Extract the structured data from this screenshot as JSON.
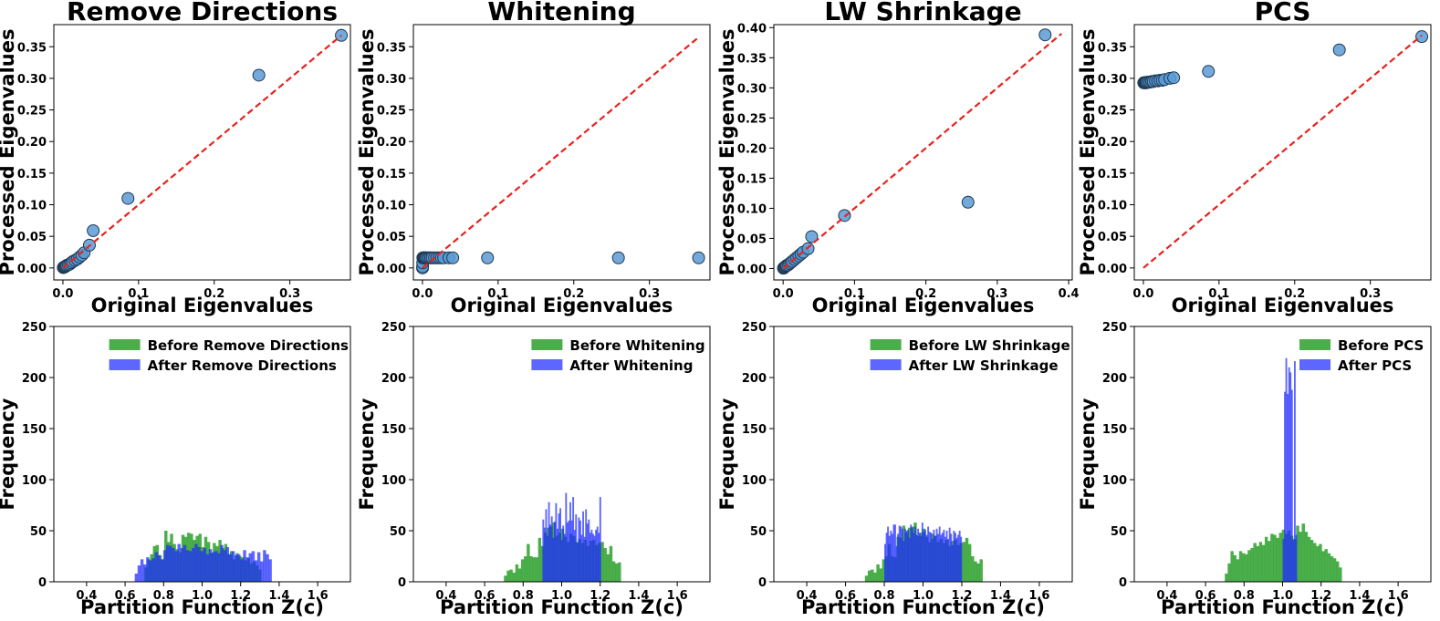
{
  "colors": {
    "scatter_fill": "#5b9bd5",
    "scatter_edge": "#1f3a55",
    "diagonal": "#e8221c",
    "before": "#2ca02c",
    "after": "#1f2bff"
  },
  "chart_data": [
    {
      "type": "scatter",
      "title": "Remove Directions",
      "xlabel": "Original Eigenvalues",
      "ylabel": "Processed Eigenvalues",
      "xlim": [
        -0.012,
        0.38
      ],
      "ylim": [
        -0.019,
        0.385
      ],
      "xticks": [
        0.0,
        0.1,
        0.2,
        0.3
      ],
      "xticklabels": [
        "0.0",
        "0.1",
        "0.2",
        "0.3"
      ],
      "yticks": [
        0.0,
        0.05,
        0.1,
        0.15,
        0.2,
        0.25,
        0.3,
        0.35
      ],
      "yticklabels": [
        "0.00",
        "0.05",
        "0.10",
        "0.15",
        "0.20",
        "0.25",
        "0.30",
        "0.35"
      ],
      "diagonal": [
        [
          0,
          0
        ],
        [
          0.368,
          0.368
        ]
      ],
      "x": [
        0.368,
        0.259,
        0.086,
        0.04,
        0.035,
        0.028,
        0.025,
        0.022,
        0.019,
        0.016,
        0.013,
        0.011,
        0.009,
        0.007,
        0.005,
        0.004,
        0.003,
        0.002,
        0.001,
        0.0005
      ],
      "y": [
        0.368,
        0.305,
        0.11,
        0.059,
        0.036,
        0.024,
        0.02,
        0.017,
        0.014,
        0.012,
        0.01,
        0.008,
        0.006,
        0.005,
        0.004,
        0.003,
        0.002,
        0.0015,
        0.001,
        0.0005
      ]
    },
    {
      "type": "scatter",
      "title": "Whitening",
      "xlabel": "Original Eigenvalues",
      "ylabel": "Processed Eigenvalues",
      "xlim": [
        -0.012,
        0.38
      ],
      "ylim": [
        -0.019,
        0.385
      ],
      "xticks": [
        0.0,
        0.1,
        0.2,
        0.3
      ],
      "xticklabels": [
        "0.0",
        "0.1",
        "0.2",
        "0.3"
      ],
      "yticks": [
        0.0,
        0.05,
        0.1,
        0.15,
        0.2,
        0.25,
        0.3,
        0.35
      ],
      "yticklabels": [
        "0.00",
        "0.05",
        "0.10",
        "0.15",
        "0.20",
        "0.25",
        "0.30",
        "0.35"
      ],
      "diagonal": [
        [
          0,
          0
        ],
        [
          0.365,
          0.365
        ]
      ],
      "x": [
        0.365,
        0.259,
        0.086,
        0.04,
        0.035,
        0.028,
        0.025,
        0.022,
        0.019,
        0.016,
        0.013,
        0.011,
        0.009,
        0.007,
        0.005,
        0.004,
        0.003,
        0.002,
        0.001,
        0.0005,
        0.0003,
        0.0002,
        0.0001
      ],
      "y": [
        0.016,
        0.016,
        0.016,
        0.016,
        0.016,
        0.016,
        0.016,
        0.016,
        0.016,
        0.016,
        0.016,
        0.016,
        0.016,
        0.016,
        0.016,
        0.016,
        0.016,
        0.016,
        0.016,
        0.016,
        0.008,
        0.002,
        0.0
      ]
    },
    {
      "type": "scatter",
      "title": "LW Shrinkage",
      "xlabel": "Original Eigenvalues",
      "ylabel": "Processed Eigenvalues",
      "xlim": [
        -0.013,
        0.405
      ],
      "ylim": [
        -0.019,
        0.405
      ],
      "xticks": [
        0.0,
        0.1,
        0.2,
        0.3,
        0.4
      ],
      "xticklabels": [
        "0.0",
        "0.1",
        "0.2",
        "0.3",
        "0.4"
      ],
      "yticks": [
        0.0,
        0.05,
        0.1,
        0.15,
        0.2,
        0.25,
        0.3,
        0.35,
        0.4
      ],
      "yticklabels": [
        "0.00",
        "0.05",
        "0.10",
        "0.15",
        "0.20",
        "0.25",
        "0.30",
        "0.35",
        "0.40"
      ],
      "diagonal": [
        [
          0,
          0
        ],
        [
          0.39,
          0.39
        ]
      ],
      "x": [
        0.367,
        0.259,
        0.086,
        0.04,
        0.035,
        0.028,
        0.025,
        0.022,
        0.019,
        0.016,
        0.013,
        0.011,
        0.009,
        0.007,
        0.005,
        0.004,
        0.003,
        0.002,
        0.001,
        0.0005
      ],
      "y": [
        0.388,
        0.11,
        0.088,
        0.053,
        0.033,
        0.027,
        0.024,
        0.021,
        0.018,
        0.015,
        0.012,
        0.01,
        0.008,
        0.006,
        0.005,
        0.004,
        0.003,
        0.002,
        0.001,
        0.0005
      ]
    },
    {
      "type": "scatter",
      "title": "PCS",
      "xlabel": "Original Eigenvalues",
      "ylabel": "Processed Eigenvalues",
      "xlim": [
        -0.012,
        0.38
      ],
      "ylim": [
        -0.019,
        0.385
      ],
      "xticks": [
        0.0,
        0.1,
        0.2,
        0.3
      ],
      "xticklabels": [
        "0.0",
        "0.1",
        "0.2",
        "0.3"
      ],
      "yticks": [
        0.0,
        0.05,
        0.1,
        0.15,
        0.2,
        0.25,
        0.3,
        0.35
      ],
      "yticklabels": [
        "0.00",
        "0.05",
        "0.10",
        "0.15",
        "0.20",
        "0.25",
        "0.30",
        "0.35"
      ],
      "diagonal": [
        [
          0,
          0
        ],
        [
          0.368,
          0.368
        ]
      ],
      "x": [
        0.368,
        0.259,
        0.086,
        0.04,
        0.035,
        0.028,
        0.025,
        0.022,
        0.019,
        0.016,
        0.013,
        0.011,
        0.009,
        0.007,
        0.005,
        0.004,
        0.003,
        0.002,
        0.001,
        0.0005
      ],
      "y": [
        0.366,
        0.345,
        0.311,
        0.301,
        0.3,
        0.298,
        0.297,
        0.297,
        0.296,
        0.296,
        0.295,
        0.295,
        0.294,
        0.294,
        0.294,
        0.293,
        0.293,
        0.293,
        0.293,
        0.293
      ]
    },
    {
      "type": "histogram",
      "xlabel": "Partition Function Z(c)",
      "ylabel": "Frequency",
      "xlim": [
        0.23,
        1.77
      ],
      "ylim": [
        0,
        250
      ],
      "xticks": [
        0.4,
        0.6,
        0.8,
        1.0,
        1.2,
        1.4,
        1.6
      ],
      "xticklabels": [
        "0.4",
        "0.6",
        "0.8",
        "1.0",
        "1.2",
        "1.4",
        "1.6"
      ],
      "yticks": [
        0,
        50,
        100,
        150,
        200,
        250
      ],
      "yticklabels": [
        "0",
        "50",
        "100",
        "150",
        "200",
        "250"
      ],
      "legend": [
        "Before Remove Directions",
        "After Remove Directions"
      ],
      "before": {
        "start": 0.7,
        "width": 0.0148,
        "counts": [
          14,
          22,
          27,
          35,
          36,
          26,
          22,
          50,
          39,
          47,
          37,
          32,
          29,
          46,
          44,
          48,
          47,
          41,
          45,
          47,
          34,
          44,
          39,
          28,
          38,
          35,
          41,
          33,
          37,
          27,
          30,
          22,
          28,
          25,
          24,
          21,
          23,
          18,
          20,
          16,
          12
        ]
      },
      "after": {
        "start": 0.65,
        "width": 0.0148,
        "counts": [
          8,
          16,
          22,
          17,
          24,
          21,
          23,
          29,
          26,
          22,
          31,
          36,
          35,
          33,
          30,
          37,
          33,
          36,
          31,
          30,
          33,
          37,
          34,
          30,
          33,
          27,
          32,
          29,
          30,
          28,
          36,
          31,
          34,
          27,
          30,
          26,
          27,
          22,
          31,
          24,
          28,
          30,
          21,
          29,
          20,
          31,
          27,
          22
        ]
      }
    },
    {
      "type": "histogram",
      "xlabel": "Partition Function Z(c)",
      "ylabel": "Frequency",
      "xlim": [
        0.23,
        1.77
      ],
      "ylim": [
        0,
        250
      ],
      "xticks": [
        0.4,
        0.6,
        0.8,
        1.0,
        1.2,
        1.4,
        1.6
      ],
      "xticklabels": [
        "0.4",
        "0.6",
        "0.8",
        "1.0",
        "1.2",
        "1.4",
        "1.6"
      ],
      "yticks": [
        0,
        50,
        100,
        150,
        200,
        250
      ],
      "yticklabels": [
        "0",
        "50",
        "100",
        "150",
        "200",
        "250"
      ],
      "legend": [
        "Before Whitening",
        "After Whitening"
      ],
      "before": {
        "start": 0.7,
        "width": 0.0148,
        "counts": [
          6,
          11,
          12,
          9,
          17,
          13,
          22,
          25,
          37,
          25,
          24,
          24,
          43,
          35,
          48,
          53,
          54,
          58,
          45,
          48,
          52,
          44,
          39,
          47,
          45,
          39,
          42,
          38,
          41,
          35,
          40,
          41,
          36,
          38,
          39,
          33,
          27,
          35,
          20,
          18,
          19
        ]
      },
      "after": {
        "start": 0.9,
        "width": 0.0074,
        "counts": [
          61,
          53,
          71,
          45,
          78,
          56,
          64,
          43,
          59,
          77,
          52,
          67,
          72,
          41,
          55,
          47,
          87,
          58,
          60,
          78,
          60,
          83,
          51,
          66,
          38,
          63,
          60,
          46,
          69,
          44,
          71,
          57,
          61,
          48,
          51,
          47,
          45,
          51,
          54,
          48,
          83
        ]
      }
    },
    {
      "type": "histogram",
      "xlabel": "Partition Function Z(c)",
      "ylabel": "Frequency",
      "xlim": [
        0.23,
        1.77
      ],
      "ylim": [
        0,
        250
      ],
      "xticks": [
        0.4,
        0.6,
        0.8,
        1.0,
        1.2,
        1.4,
        1.6
      ],
      "xticklabels": [
        "0.4",
        "0.6",
        "0.8",
        "1.0",
        "1.2",
        "1.4",
        "1.6"
      ],
      "yticks": [
        0,
        50,
        100,
        150,
        200,
        250
      ],
      "yticklabels": [
        "0",
        "50",
        "100",
        "150",
        "200",
        "250"
      ],
      "legend": [
        "Before LW Shrinkage",
        "After LW Shrinkage"
      ],
      "before": {
        "start": 0.7,
        "width": 0.0148,
        "counts": [
          6,
          11,
          12,
          9,
          17,
          13,
          22,
          25,
          37,
          25,
          24,
          44,
          43,
          55,
          48,
          53,
          54,
          58,
          45,
          48,
          52,
          44,
          39,
          47,
          45,
          39,
          42,
          38,
          41,
          35,
          40,
          41,
          36,
          38,
          39,
          43,
          37,
          25,
          20,
          18,
          22
        ]
      },
      "after": {
        "start": 0.8,
        "width": 0.0074,
        "counts": [
          37,
          48,
          54,
          45,
          50,
          47,
          56,
          56,
          35,
          47,
          55,
          54,
          52,
          40,
          52,
          50,
          51,
          43,
          56,
          53,
          48,
          54,
          46,
          52,
          48,
          45,
          58,
          49,
          51,
          46,
          54,
          49,
          48,
          42,
          51,
          45,
          52,
          47,
          54,
          46,
          48,
          51,
          44,
          50,
          42,
          53,
          47,
          36,
          50,
          48,
          43,
          46,
          50,
          44
        ]
      }
    },
    {
      "type": "histogram",
      "xlabel": "Partition Function Z(c)",
      "ylabel": "Frequency",
      "xlim": [
        0.23,
        1.77
      ],
      "ylim": [
        0,
        250
      ],
      "xticks": [
        0.4,
        0.6,
        0.8,
        1.0,
        1.2,
        1.4,
        1.6
      ],
      "xticklabels": [
        "0.4",
        "0.6",
        "0.8",
        "1.0",
        "1.2",
        "1.4",
        "1.6"
      ],
      "yticks": [
        0,
        50,
        100,
        150,
        200,
        250
      ],
      "yticklabels": [
        "0",
        "50",
        "100",
        "150",
        "200",
        "250"
      ],
      "legend": [
        "Before PCS",
        "After PCS"
      ],
      "before": {
        "start": 0.7,
        "width": 0.0148,
        "counts": [
          8,
          18,
          30,
          26,
          22,
          30,
          28,
          27,
          31,
          33,
          38,
          35,
          39,
          36,
          44,
          40,
          47,
          46,
          43,
          48,
          51,
          47,
          50,
          45,
          42,
          55,
          49,
          57,
          49,
          44,
          41,
          38,
          35,
          37,
          30,
          32,
          28,
          25,
          23,
          20,
          14
        ]
      },
      "after": {
        "start": 1.0,
        "width": 0.0074,
        "counts": [
          42,
          186,
          219,
          184,
          210,
          205,
          188,
          41,
          216,
          46
        ]
      }
    }
  ]
}
